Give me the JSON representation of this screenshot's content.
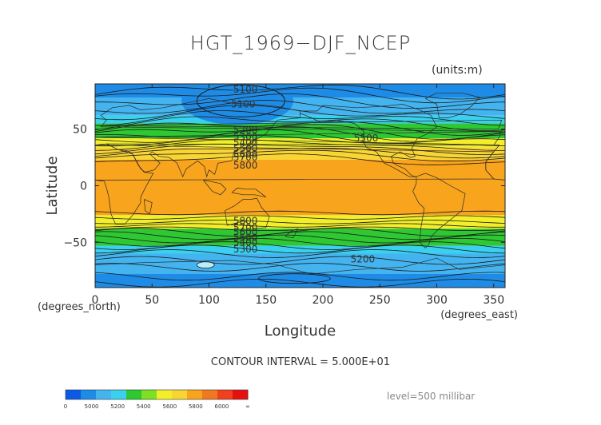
{
  "chart_data": {
    "type": "heatmap",
    "title": "HGT_1969−DJF_NCEP",
    "units_label": "(units:m)",
    "xlabel": "Longitude",
    "ylabel": "Latitude",
    "x_unit_label": "(degrees_east)",
    "y_unit_label": "(degrees_north)",
    "xlim": [
      0,
      360
    ],
    "ylim": [
      -90,
      90
    ],
    "x_ticks": [
      0,
      50,
      100,
      150,
      200,
      250,
      300,
      350
    ],
    "y_ticks": [
      50,
      0,
      -50
    ],
    "y_tick_labels": [
      "50",
      "0",
      "−50"
    ],
    "contour_interval_text": "CONTOUR INTERVAL = 5.000E+01",
    "level_text": "level=500 millibar",
    "contour_labels": [
      {
        "text": "5100",
        "x": 132,
        "y": 85
      },
      {
        "text": "5100",
        "x": 130,
        "y": 72
      },
      {
        "text": "5500",
        "x": 238,
        "y": 42
      },
      {
        "text": "5200",
        "x": 132,
        "y": 49
      },
      {
        "text": "5300",
        "x": 132,
        "y": 43
      },
      {
        "text": "5400",
        "x": 132,
        "y": 38
      },
      {
        "text": "5500",
        "x": 132,
        "y": 33
      },
      {
        "text": "5600",
        "x": 132,
        "y": 28
      },
      {
        "text": "5700",
        "x": 132,
        "y": 25
      },
      {
        "text": "5800",
        "x": 132,
        "y": 18
      },
      {
        "text": "5800",
        "x": 132,
        "y": -31
      },
      {
        "text": "5700",
        "x": 132,
        "y": -37
      },
      {
        "text": "5600",
        "x": 132,
        "y": -41
      },
      {
        "text": "5500",
        "x": 132,
        "y": -46
      },
      {
        "text": "5400",
        "x": 132,
        "y": -50
      },
      {
        "text": "5300",
        "x": 132,
        "y": -56
      },
      {
        "text": "5200",
        "x": 235,
        "y": -65
      }
    ],
    "bands": [
      {
        "lat_from": 90,
        "lat_to": 78,
        "color": "#1e8ce6"
      },
      {
        "lat_from": 78,
        "lat_to": 62,
        "color": "#44b4f0"
      },
      {
        "lat_from": 62,
        "lat_to": 55,
        "color": "#3ad1ee"
      },
      {
        "lat_from": 55,
        "lat_to": 42,
        "color": "#2ec832"
      },
      {
        "lat_from": 42,
        "lat_to": 34,
        "color": "#f2ee2a"
      },
      {
        "lat_from": 34,
        "lat_to": 23,
        "color": "#f9d534"
      },
      {
        "lat_from": 23,
        "lat_to": -26,
        "color": "#f8a41c"
      },
      {
        "lat_from": -26,
        "lat_to": -38,
        "color": "#f2ee2a"
      },
      {
        "lat_from": -38,
        "lat_to": -53,
        "color": "#2ec832"
      },
      {
        "lat_from": -53,
        "lat_to": -60,
        "color": "#3ad1ee"
      },
      {
        "lat_from": -60,
        "lat_to": -78,
        "color": "#44b4f0"
      },
      {
        "lat_from": -78,
        "lat_to": -90,
        "color": "#1e8ce6"
      }
    ],
    "colorbar": {
      "colors": [
        "#0a5ae6",
        "#1e8ce6",
        "#44b4f0",
        "#3ad1ee",
        "#2ec832",
        "#7de022",
        "#f2ee2a",
        "#f9d534",
        "#f8a41c",
        "#f07820",
        "#f04020",
        "#e61010"
      ],
      "labels": [
        "0",
        "5000",
        "5200",
        "5400",
        "5600",
        "5800",
        "6000",
        "∞"
      ]
    }
  }
}
